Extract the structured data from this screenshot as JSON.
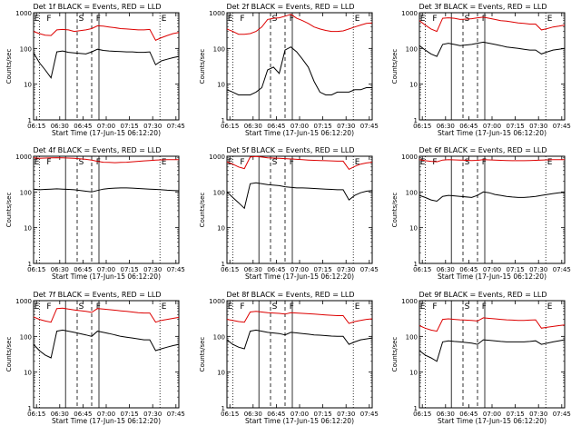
{
  "figure": {
    "series_names": [
      "BLACK = Events",
      "RED = LLD"
    ],
    "colors": {
      "events": "#000000",
      "lld": "#dd0000",
      "axis": "#000000",
      "background": "#ffffff"
    }
  },
  "chart_data": [
    {
      "type": "line",
      "title": "Det 1f BLACK = Events, RED = LLD",
      "xlabel": "Start Time (17-Jun-15 06:12:20)",
      "ylabel": "Counts/sec",
      "yscale": "log",
      "ylim": [
        1,
        1000
      ],
      "xlim": [
        0,
        100
      ],
      "xticks": [
        "06:15",
        "06:30",
        "06:45",
        "07:00",
        "07:15",
        "07:30",
        "07:45"
      ],
      "yticks": [
        "1",
        "10",
        "100",
        "1000"
      ],
      "regions": [
        "E",
        "F",
        "S",
        "F",
        "E"
      ],
      "events": {
        "x": [
          0,
          4,
          8,
          12,
          16,
          20,
          24,
          28,
          36,
          40,
          44,
          48,
          52,
          56,
          60,
          64,
          68,
          72,
          76,
          80,
          84,
          88,
          92,
          96,
          100
        ],
        "y": [
          75,
          40,
          25,
          15,
          80,
          85,
          78,
          75,
          70,
          80,
          95,
          88,
          85,
          83,
          82,
          80,
          80,
          78,
          78,
          80,
          35,
          45,
          50,
          55,
          60
        ]
      },
      "lld": {
        "x": [
          0,
          4,
          8,
          12,
          16,
          20,
          24,
          28,
          36,
          40,
          44,
          48,
          52,
          56,
          60,
          64,
          68,
          72,
          76,
          80,
          84,
          88,
          92,
          96,
          100
        ],
        "y": [
          300,
          260,
          235,
          230,
          330,
          340,
          330,
          300,
          330,
          360,
          430,
          420,
          400,
          380,
          360,
          350,
          340,
          330,
          330,
          340,
          170,
          200,
          230,
          260,
          280
        ]
      }
    },
    {
      "type": "line",
      "title": "Det 2f BLACK = Events, RED = LLD",
      "xlabel": "Start Time (17-Jun-15 06:12:20)",
      "ylabel": "Counts/sec",
      "yscale": "log",
      "ylim": [
        1,
        1000
      ],
      "xlim": [
        0,
        100
      ],
      "xticks": [
        "06:15",
        "06:30",
        "06:45",
        "07:00",
        "07:15",
        "07:30",
        "07:45"
      ],
      "yticks": [
        "1",
        "10",
        "100",
        "1000"
      ],
      "regions": [
        "E",
        "F",
        "S",
        "F",
        "E"
      ],
      "events": {
        "x": [
          0,
          4,
          8,
          12,
          16,
          20,
          24,
          28,
          32,
          36,
          40,
          44,
          48,
          52,
          56,
          60,
          64,
          68,
          72,
          76,
          80,
          84,
          88,
          92,
          96,
          100
        ],
        "y": [
          7,
          6,
          5,
          5,
          5,
          6,
          8,
          25,
          30,
          20,
          90,
          110,
          80,
          50,
          30,
          12,
          6,
          5,
          5,
          6,
          6,
          6,
          7,
          7,
          8,
          8
        ]
      },
      "lld": {
        "x": [
          0,
          4,
          8,
          12,
          16,
          20,
          24,
          28,
          32,
          36,
          40,
          44,
          48,
          52,
          56,
          60,
          64,
          68,
          72,
          76,
          80,
          84,
          88,
          92,
          96,
          100
        ],
        "y": [
          350,
          300,
          250,
          250,
          260,
          300,
          400,
          650,
          700,
          720,
          800,
          900,
          700,
          600,
          500,
          400,
          350,
          320,
          300,
          300,
          310,
          350,
          400,
          450,
          500,
          520
        ]
      }
    },
    {
      "type": "line",
      "title": "Det 3f BLACK = Events, RED = LLD",
      "xlabel": "Start Time (17-Jun-15 06:12:20)",
      "ylabel": "Counts/sec",
      "yscale": "log",
      "ylim": [
        1,
        1000
      ],
      "xlim": [
        0,
        100
      ],
      "xticks": [
        "06:15",
        "06:30",
        "06:45",
        "07:00",
        "07:15",
        "07:30",
        "07:45"
      ],
      "yticks": [
        "1",
        "10",
        "100",
        "1000"
      ],
      "regions": [
        "E",
        "F",
        "S",
        "F",
        "E"
      ],
      "events": {
        "x": [
          0,
          4,
          8,
          12,
          16,
          20,
          24,
          28,
          36,
          40,
          44,
          48,
          52,
          56,
          60,
          64,
          68,
          72,
          76,
          80,
          84,
          88,
          92,
          96,
          100
        ],
        "y": [
          120,
          90,
          70,
          60,
          130,
          140,
          130,
          120,
          130,
          140,
          150,
          140,
          130,
          120,
          110,
          105,
          100,
          95,
          90,
          90,
          70,
          80,
          90,
          95,
          100
        ]
      },
      "lld": {
        "x": [
          0,
          4,
          8,
          12,
          16,
          20,
          24,
          28,
          36,
          40,
          44,
          48,
          52,
          56,
          60,
          64,
          68,
          72,
          76,
          80,
          84,
          88,
          92,
          96,
          100
        ],
        "y": [
          600,
          450,
          350,
          300,
          700,
          720,
          700,
          650,
          680,
          720,
          750,
          700,
          650,
          600,
          580,
          550,
          520,
          500,
          480,
          480,
          330,
          360,
          400,
          420,
          450
        ]
      }
    },
    {
      "type": "line",
      "title": "Det 4f BLACK = Events, RED = LLD",
      "xlabel": "Start Time (17-Jun-15 06:12:20)",
      "ylabel": "Counts/sec",
      "yscale": "log",
      "ylim": [
        1,
        1000
      ],
      "xlim": [
        0,
        100
      ],
      "xticks": [
        "06:15",
        "06:30",
        "06:45",
        "07:00",
        "07:15",
        "07:30",
        "07:45"
      ],
      "yticks": [
        "1",
        "10",
        "100",
        "1000"
      ],
      "regions": [
        "E",
        "F",
        "S",
        "F",
        "E"
      ],
      "events": {
        "x": [
          0,
          4,
          8,
          12,
          16,
          20,
          24,
          28,
          36,
          40,
          44,
          48,
          52,
          56,
          60,
          64,
          68,
          72,
          76,
          80,
          84,
          88,
          92,
          96,
          100
        ],
        "y": [
          120,
          115,
          118,
          120,
          122,
          120,
          118,
          115,
          105,
          100,
          110,
          120,
          125,
          128,
          130,
          130,
          128,
          125,
          122,
          120,
          118,
          115,
          112,
          110,
          108
        ]
      },
      "lld": {
        "x": [
          0,
          4,
          8,
          12,
          16,
          20,
          24,
          28,
          36,
          40,
          44,
          48,
          52,
          56,
          60,
          64,
          68,
          72,
          76,
          80,
          84,
          88,
          92,
          96,
          100
        ],
        "y": [
          900,
          880,
          890,
          900,
          910,
          900,
          890,
          880,
          820,
          780,
          720,
          680,
          670,
          660,
          670,
          680,
          700,
          720,
          740,
          760,
          780,
          790,
          800,
          800,
          800
        ]
      }
    },
    {
      "type": "line",
      "title": "Det 5f BLACK = Events, RED = LLD",
      "xlabel": "Start Time (17-Jun-15 06:12:20)",
      "ylabel": "Counts/sec",
      "yscale": "log",
      "ylim": [
        1,
        1000
      ],
      "xlim": [
        0,
        100
      ],
      "xticks": [
        "06:15",
        "06:30",
        "06:45",
        "07:00",
        "07:15",
        "07:30",
        "07:45"
      ],
      "yticks": [
        "1",
        "10",
        "100",
        "1000"
      ],
      "regions": [
        "E",
        "F",
        "S",
        "F",
        "E"
      ],
      "events": {
        "x": [
          0,
          4,
          8,
          12,
          16,
          20,
          24,
          28,
          36,
          40,
          44,
          48,
          52,
          56,
          60,
          64,
          68,
          72,
          76,
          80,
          84,
          88,
          92,
          96,
          100
        ],
        "y": [
          100,
          70,
          50,
          35,
          170,
          180,
          170,
          160,
          150,
          140,
          135,
          130,
          130,
          128,
          125,
          122,
          120,
          118,
          115,
          115,
          60,
          80,
          95,
          105,
          110
        ]
      },
      "lld": {
        "x": [
          0,
          4,
          8,
          12,
          16,
          20,
          24,
          28,
          36,
          40,
          44,
          48,
          52,
          56,
          60,
          64,
          68,
          72,
          76,
          80,
          84,
          88,
          92,
          96,
          100
        ],
        "y": [
          700,
          600,
          500,
          450,
          950,
          980,
          950,
          900,
          880,
          860,
          840,
          820,
          800,
          780,
          770,
          760,
          750,
          740,
          730,
          730,
          430,
          520,
          600,
          650,
          680
        ]
      }
    },
    {
      "type": "line",
      "title": "Det 6f BLACK = Events, RED = LLD",
      "xlabel": "Start Time (17-Jun-15 06:12:20)",
      "ylabel": "Counts/sec",
      "yscale": "log",
      "ylim": [
        1,
        1000
      ],
      "xlim": [
        0,
        100
      ],
      "xticks": [
        "06:15",
        "06:30",
        "06:45",
        "07:00",
        "07:15",
        "07:30",
        "07:45"
      ],
      "yticks": [
        "1",
        "10",
        "100",
        "1000"
      ],
      "regions": [
        "E",
        "F",
        "S",
        "F",
        "E"
      ],
      "events": {
        "x": [
          0,
          4,
          8,
          12,
          16,
          20,
          24,
          28,
          36,
          40,
          44,
          48,
          52,
          56,
          60,
          64,
          68,
          72,
          76,
          80,
          84,
          88,
          92,
          96,
          100
        ],
        "y": [
          80,
          70,
          60,
          55,
          75,
          80,
          78,
          75,
          70,
          80,
          100,
          95,
          85,
          80,
          75,
          72,
          70,
          70,
          72,
          75,
          80,
          85,
          90,
          95,
          98
        ]
      },
      "lld": {
        "x": [
          0,
          4,
          8,
          12,
          16,
          20,
          24,
          28,
          36,
          40,
          44,
          48,
          52,
          56,
          60,
          64,
          68,
          72,
          76,
          80,
          84,
          88,
          92,
          96,
          100
        ],
        "y": [
          800,
          750,
          720,
          700,
          780,
          800,
          790,
          780,
          760,
          770,
          800,
          790,
          780,
          770,
          760,
          750,
          750,
          750,
          760,
          770,
          780,
          790,
          800,
          800,
          800
        ]
      }
    },
    {
      "type": "line",
      "title": "Det 7f BLACK = Events, RED = LLD",
      "xlabel": "Start Time (17-Jun-15 06:12:20)",
      "ylabel": "Counts/sec",
      "yscale": "log",
      "ylim": [
        1,
        1000
      ],
      "xlim": [
        0,
        100
      ],
      "xticks": [
        "06:15",
        "06:30",
        "06:45",
        "07:00",
        "07:15",
        "07:30",
        "07:45"
      ],
      "yticks": [
        "1",
        "10",
        "100",
        "1000"
      ],
      "regions": [
        "E",
        "F",
        "S",
        "F",
        "E"
      ],
      "events": {
        "x": [
          0,
          4,
          8,
          12,
          16,
          20,
          24,
          28,
          36,
          40,
          44,
          48,
          52,
          56,
          60,
          64,
          68,
          72,
          76,
          80,
          84,
          88,
          92,
          96,
          100
        ],
        "y": [
          60,
          40,
          30,
          25,
          140,
          150,
          140,
          130,
          110,
          100,
          140,
          130,
          120,
          110,
          100,
          95,
          90,
          85,
          80,
          80,
          40,
          45,
          50,
          55,
          60
        ]
      },
      "lld": {
        "x": [
          0,
          4,
          8,
          12,
          16,
          20,
          24,
          28,
          36,
          40,
          44,
          48,
          52,
          56,
          60,
          64,
          68,
          72,
          76,
          80,
          84,
          88,
          92,
          96,
          100
        ],
        "y": [
          350,
          300,
          270,
          250,
          600,
          620,
          580,
          550,
          500,
          470,
          600,
          580,
          560,
          540,
          520,
          500,
          480,
          460,
          450,
          450,
          250,
          280,
          300,
          320,
          340
        ]
      }
    },
    {
      "type": "line",
      "title": "Det 8f BLACK = Events, RED = LLD",
      "xlabel": "Start Time (17-Jun-15 06:12:20)",
      "ylabel": "Counts/sec",
      "yscale": "log",
      "ylim": [
        1,
        1000
      ],
      "xlim": [
        0,
        100
      ],
      "xticks": [
        "06:15",
        "06:30",
        "06:45",
        "07:00",
        "07:15",
        "07:30",
        "07:45"
      ],
      "yticks": [
        "1",
        "10",
        "100",
        "1000"
      ],
      "regions": [
        "E",
        "F",
        "S",
        "F",
        "E"
      ],
      "events": {
        "x": [
          0,
          4,
          8,
          12,
          16,
          20,
          24,
          28,
          36,
          40,
          44,
          48,
          52,
          56,
          60,
          64,
          68,
          72,
          76,
          80,
          84,
          88,
          92,
          96,
          100
        ],
        "y": [
          80,
          60,
          50,
          45,
          140,
          150,
          140,
          130,
          120,
          110,
          130,
          125,
          120,
          115,
          110,
          108,
          105,
          102,
          100,
          100,
          60,
          70,
          80,
          85,
          90
        ]
      },
      "lld": {
        "x": [
          0,
          4,
          8,
          12,
          16,
          20,
          24,
          28,
          36,
          40,
          44,
          48,
          52,
          56,
          60,
          64,
          68,
          72,
          76,
          80,
          84,
          88,
          92,
          96,
          100
        ],
        "y": [
          300,
          280,
          260,
          250,
          480,
          500,
          480,
          460,
          440,
          420,
          460,
          450,
          440,
          430,
          420,
          410,
          400,
          390,
          380,
          380,
          230,
          260,
          280,
          300,
          310
        ]
      }
    },
    {
      "type": "line",
      "title": "Det 9f BLACK = Events, RED = LLD",
      "xlabel": "Start Time (17-Jun-15 06:12:20)",
      "ylabel": "Counts/sec",
      "yscale": "log",
      "ylim": [
        1,
        1000
      ],
      "xlim": [
        0,
        100
      ],
      "xticks": [
        "06:15",
        "06:30",
        "06:45",
        "07:00",
        "07:15",
        "07:30",
        "07:45"
      ],
      "yticks": [
        "1",
        "10",
        "100",
        "1000"
      ],
      "regions": [
        "E",
        "F",
        "S",
        "F",
        "E"
      ],
      "events": {
        "x": [
          0,
          4,
          8,
          12,
          16,
          20,
          24,
          28,
          36,
          40,
          44,
          48,
          52,
          56,
          60,
          64,
          68,
          72,
          76,
          80,
          84,
          88,
          92,
          96,
          100
        ],
        "y": [
          40,
          30,
          25,
          20,
          70,
          75,
          72,
          70,
          65,
          60,
          80,
          78,
          75,
          72,
          70,
          70,
          70,
          70,
          72,
          75,
          60,
          65,
          70,
          75,
          80
        ]
      },
      "lld": {
        "x": [
          0,
          4,
          8,
          12,
          16,
          20,
          24,
          28,
          36,
          40,
          44,
          48,
          52,
          56,
          60,
          64,
          68,
          72,
          76,
          80,
          84,
          88,
          92,
          96,
          100
        ],
        "y": [
          200,
          170,
          150,
          140,
          300,
          310,
          300,
          290,
          280,
          270,
          330,
          320,
          310,
          300,
          290,
          285,
          280,
          280,
          285,
          290,
          170,
          180,
          190,
          200,
          210
        ]
      }
    }
  ]
}
